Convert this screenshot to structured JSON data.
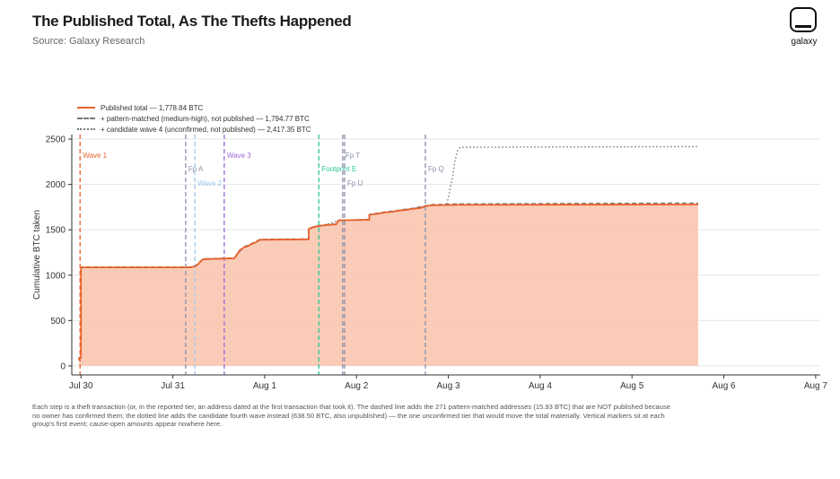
{
  "header": {
    "title": "The Published Total, As The Thefts Happened",
    "subtitle": "Source: Galaxy Research",
    "logo_text": "galaxy"
  },
  "legend": [
    {
      "label": "Published total — 1,778.84 BTC",
      "style": "solid",
      "color": "#e8622c"
    },
    {
      "label": "+ pattern-matched (medium-high), not published — 1,794.77 BTC",
      "style": "dashed",
      "color": "#777777"
    },
    {
      "label": "+ candidate wave 4 (unconfirmed, not published) — 2,417.35 BTC",
      "style": "dotted",
      "color": "#777777"
    }
  ],
  "footnote": "Each step is a theft transaction (or, in the reported tier, an address dated at the first transaction that took it). The dashed line adds the 271 pattern-matched addresses (15.93 BTC) that are NOT published because no owner has confirmed them; the dotted line adds the candidate fourth wave instead (638.50 BTC, also unpublished) — the one unconfirmed tier that would move the total materially. Vertical markers sit at each group's first event; cause-open amounts appear nowhere here.",
  "chart_data": {
    "type": "area",
    "ylabel": "Cumulative BTC taken",
    "xlabel": "",
    "ylim": [
      -100,
      2550
    ],
    "xlim": [
      -0.1,
      8.05
    ],
    "yticks": [
      0,
      500,
      1000,
      1500,
      2000,
      2500
    ],
    "xticks": [
      {
        "x": 0,
        "label": "Jul 30"
      },
      {
        "x": 1,
        "label": "Jul 31"
      },
      {
        "x": 2,
        "label": "Aug 1"
      },
      {
        "x": 3,
        "label": "Aug 2"
      },
      {
        "x": 4,
        "label": "Aug 3"
      },
      {
        "x": 5,
        "label": "Aug 4"
      },
      {
        "x": 6,
        "label": "Aug 5"
      },
      {
        "x": 7,
        "label": "Aug 6"
      },
      {
        "x": 8,
        "label": "Aug 7"
      }
    ],
    "grid": "horizontal",
    "colors": {
      "published": "#e8622c",
      "fill": "#f9c6b0",
      "reference": "#666666"
    },
    "series": [
      {
        "name": "Published total — 1,778.84 BTC",
        "style": "solid",
        "points": [
          [
            -0.02,
            60
          ],
          [
            -0.02,
            90
          ],
          [
            0.0,
            90
          ],
          [
            0.0,
            1085
          ],
          [
            1.2,
            1085
          ],
          [
            1.2,
            1090
          ],
          [
            1.24,
            1095
          ],
          [
            1.26,
            1110
          ],
          [
            1.28,
            1125
          ],
          [
            1.3,
            1150
          ],
          [
            1.33,
            1175
          ],
          [
            1.45,
            1180
          ],
          [
            1.67,
            1185
          ],
          [
            1.7,
            1230
          ],
          [
            1.73,
            1275
          ],
          [
            1.78,
            1310
          ],
          [
            1.82,
            1320
          ],
          [
            1.85,
            1340
          ],
          [
            1.9,
            1360
          ],
          [
            1.95,
            1390
          ],
          [
            2.48,
            1395
          ],
          [
            2.48,
            1510
          ],
          [
            2.55,
            1535
          ],
          [
            2.65,
            1550
          ],
          [
            2.78,
            1560
          ],
          [
            2.8,
            1600
          ],
          [
            2.82,
            1605
          ],
          [
            3.14,
            1610
          ],
          [
            3.14,
            1665
          ],
          [
            3.25,
            1680
          ],
          [
            3.3,
            1690
          ],
          [
            3.4,
            1700
          ],
          [
            3.45,
            1710
          ],
          [
            3.55,
            1720
          ],
          [
            3.6,
            1730
          ],
          [
            3.7,
            1740
          ],
          [
            3.75,
            1760
          ],
          [
            3.82,
            1770
          ],
          [
            4.1,
            1775
          ],
          [
            6.72,
            1778.84
          ]
        ]
      },
      {
        "name": "+ pattern-matched (medium-high), not published — 1,794.77 BTC",
        "style": "dashed",
        "points": [
          [
            -0.02,
            60
          ],
          [
            -0.02,
            90
          ],
          [
            0.0,
            90
          ],
          [
            0.0,
            1090
          ],
          [
            1.2,
            1090
          ],
          [
            1.24,
            1100
          ],
          [
            1.28,
            1130
          ],
          [
            1.3,
            1155
          ],
          [
            1.33,
            1180
          ],
          [
            1.67,
            1190
          ],
          [
            1.7,
            1235
          ],
          [
            1.78,
            1315
          ],
          [
            1.85,
            1345
          ],
          [
            1.95,
            1395
          ],
          [
            2.48,
            1400
          ],
          [
            2.48,
            1515
          ],
          [
            2.55,
            1540
          ],
          [
            2.65,
            1555
          ],
          [
            2.78,
            1565
          ],
          [
            2.8,
            1605
          ],
          [
            3.14,
            1615
          ],
          [
            3.14,
            1670
          ],
          [
            3.3,
            1695
          ],
          [
            3.45,
            1715
          ],
          [
            3.6,
            1735
          ],
          [
            3.75,
            1765
          ],
          [
            3.82,
            1778
          ],
          [
            4.1,
            1785
          ],
          [
            6.72,
            1794.77
          ]
        ]
      },
      {
        "name": "+ candidate wave 4 (unconfirmed, not published) — 2,417.35 BTC",
        "style": "dotted",
        "points": [
          [
            -0.02,
            60
          ],
          [
            -0.02,
            90
          ],
          [
            0.0,
            90
          ],
          [
            0.0,
            1085
          ],
          [
            1.2,
            1085
          ],
          [
            1.24,
            1095
          ],
          [
            1.28,
            1125
          ],
          [
            1.33,
            1175
          ],
          [
            1.67,
            1185
          ],
          [
            1.7,
            1230
          ],
          [
            1.78,
            1310
          ],
          [
            1.85,
            1340
          ],
          [
            1.95,
            1390
          ],
          [
            2.48,
            1395
          ],
          [
            2.48,
            1510
          ],
          [
            2.65,
            1550
          ],
          [
            2.8,
            1600
          ],
          [
            3.14,
            1610
          ],
          [
            3.14,
            1665
          ],
          [
            3.3,
            1690
          ],
          [
            3.45,
            1710
          ],
          [
            3.6,
            1730
          ],
          [
            3.75,
            1760
          ],
          [
            3.82,
            1770
          ],
          [
            3.98,
            1775
          ],
          [
            4.0,
            1850
          ],
          [
            4.02,
            1960
          ],
          [
            4.05,
            2100
          ],
          [
            4.07,
            2250
          ],
          [
            4.1,
            2370
          ],
          [
            4.13,
            2410
          ],
          [
            6.72,
            2417.35
          ]
        ]
      }
    ],
    "markers": [
      {
        "x": -0.01,
        "label": "Wave 1",
        "color": "#e8622c",
        "row": 0
      },
      {
        "x": 1.14,
        "label": "Fp A",
        "color": "#8a8fa8",
        "row": 1
      },
      {
        "x": 1.24,
        "label": "Wave 2",
        "color": "#9ec8ec",
        "row": 2
      },
      {
        "x": 1.56,
        "label": "Wave 3",
        "color": "#9b6bd6",
        "row": 0
      },
      {
        "x": 2.59,
        "label": "Footprint E",
        "color": "#2ec69a",
        "row": 1
      },
      {
        "x": 2.85,
        "label": "Fp T",
        "color": "#8a8fa8",
        "row": 0
      },
      {
        "x": 2.87,
        "label": "Fp U",
        "color": "#8a8fa8",
        "row": 2
      },
      {
        "x": 3.75,
        "label": "Fp Q",
        "color": "#8a8fa8",
        "row": 1
      }
    ]
  }
}
